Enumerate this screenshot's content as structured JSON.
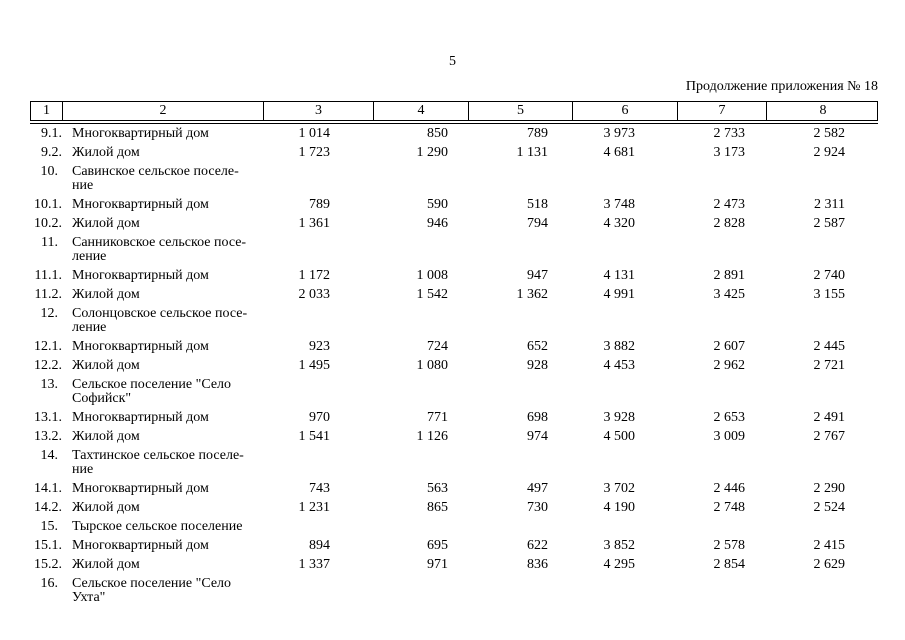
{
  "page": {
    "number": "5",
    "continuation": "Продолжение приложения № 18"
  },
  "table": {
    "column_headers": [
      "1",
      "2",
      "3",
      "4",
      "5",
      "6",
      "7",
      "8"
    ],
    "rows": [
      {
        "no": "9.1.",
        "type": "item",
        "name": "Многоквартирный дом",
        "values": [
          "1 014",
          "850",
          "789",
          "3 973",
          "2 733",
          "2 582"
        ]
      },
      {
        "no": "9.2.",
        "type": "item",
        "name": "Жилой дом",
        "values": [
          "1 723",
          "1 290",
          "1 131",
          "4 681",
          "3 173",
          "2 924"
        ]
      },
      {
        "no": "10.",
        "type": "section",
        "name": "Савинское сельское поселе-\nние",
        "values": [
          "",
          "",
          "",
          "",
          "",
          ""
        ]
      },
      {
        "no": "10.1.",
        "type": "item",
        "name": "Многоквартирный дом",
        "values": [
          "789",
          "590",
          "518",
          "3 748",
          "2 473",
          "2 311"
        ]
      },
      {
        "no": "10.2.",
        "type": "item",
        "name": "Жилой дом",
        "values": [
          "1 361",
          "946",
          "794",
          "4 320",
          "2 828",
          "2 587"
        ]
      },
      {
        "no": "11.",
        "type": "section",
        "name": "Санниковское сельское посе-\nление",
        "values": [
          "",
          "",
          "",
          "",
          "",
          ""
        ]
      },
      {
        "no": "11.1.",
        "type": "item",
        "name": "Многоквартирный дом",
        "values": [
          "1 172",
          "1 008",
          "947",
          "4 131",
          "2 891",
          "2 740"
        ]
      },
      {
        "no": "11.2.",
        "type": "item",
        "name": "Жилой дом",
        "values": [
          "2 033",
          "1 542",
          "1 362",
          "4 991",
          "3 425",
          "3 155"
        ]
      },
      {
        "no": "12.",
        "type": "section",
        "name": "Солонцовское сельское посе-\nление",
        "values": [
          "",
          "",
          "",
          "",
          "",
          ""
        ]
      },
      {
        "no": "12.1.",
        "type": "item",
        "name": "Многоквартирный дом",
        "values": [
          "923",
          "724",
          "652",
          "3 882",
          "2 607",
          "2 445"
        ]
      },
      {
        "no": "12.2.",
        "type": "item",
        "name": "Жилой дом",
        "values": [
          "1 495",
          "1 080",
          "928",
          "4 453",
          "2 962",
          "2 721"
        ]
      },
      {
        "no": "13.",
        "type": "section",
        "name": "Сельское поселение \"Село\nСофийск\"",
        "values": [
          "",
          "",
          "",
          "",
          "",
          ""
        ]
      },
      {
        "no": "13.1.",
        "type": "item",
        "name": "Многоквартирный дом",
        "values": [
          "970",
          "771",
          "698",
          "3 928",
          "2 653",
          "2 491"
        ]
      },
      {
        "no": "13.2.",
        "type": "item",
        "name": "Жилой дом",
        "values": [
          "1 541",
          "1 126",
          "974",
          "4 500",
          "3 009",
          "2 767"
        ]
      },
      {
        "no": "14.",
        "type": "section",
        "name": "Тахтинское сельское поселе-\nние",
        "values": [
          "",
          "",
          "",
          "",
          "",
          ""
        ]
      },
      {
        "no": "14.1.",
        "type": "item",
        "name": "Многоквартирный дом",
        "values": [
          "743",
          "563",
          "497",
          "3 702",
          "2 446",
          "2 290"
        ]
      },
      {
        "no": "14.2.",
        "type": "item",
        "name": "Жилой дом",
        "values": [
          "1 231",
          "865",
          "730",
          "4 190",
          "2 748",
          "2 524"
        ]
      },
      {
        "no": "15.",
        "type": "section",
        "name": "Тырское сельское поселение",
        "values": [
          "",
          "",
          "",
          "",
          "",
          ""
        ]
      },
      {
        "no": "15.1.",
        "type": "item",
        "name": "Многоквартирный дом",
        "values": [
          "894",
          "695",
          "622",
          "3 852",
          "2 578",
          "2 415"
        ]
      },
      {
        "no": "15.2.",
        "type": "item",
        "name": "Жилой дом",
        "values": [
          "1 337",
          "971",
          "836",
          "4 295",
          "2 854",
          "2 629"
        ]
      },
      {
        "no": "16.",
        "type": "section",
        "name": "Сельское поселение \"Село\nУхта\"",
        "values": [
          "",
          "",
          "",
          "",
          "",
          ""
        ]
      }
    ]
  }
}
